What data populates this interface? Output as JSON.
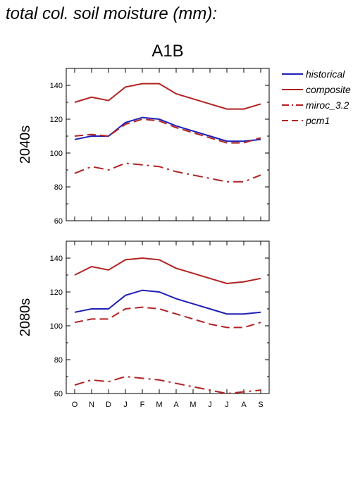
{
  "page": {
    "title": "total col. soil moisture (mm):"
  },
  "chart_data": {
    "type": "line",
    "scenario": "A1B",
    "categories": [
      "O",
      "N",
      "D",
      "J",
      "F",
      "M",
      "A",
      "M",
      "J",
      "J",
      "A",
      "S"
    ],
    "ylim": [
      60,
      150
    ],
    "yticks": [
      60,
      80,
      100,
      120,
      140
    ],
    "grid": false,
    "legend_position": "right",
    "series_styles": [
      {
        "name": "historical",
        "color": "#1f1fb4",
        "dash": "solid"
      },
      {
        "name": "composite",
        "color": "#b22222",
        "dash": "solid"
      },
      {
        "name": "miroc_3.2",
        "color": "#b22222",
        "dash": "dashdot"
      },
      {
        "name": "pcm1",
        "color": "#b22222",
        "dash": "dash"
      }
    ],
    "panels": [
      {
        "label": "2040s",
        "series": [
          {
            "name": "historical",
            "values": [
              108,
              110,
              110,
              118,
              121,
              120,
              116,
              113,
              110,
              107,
              107,
              108
            ]
          },
          {
            "name": "composite",
            "values": [
              130,
              133,
              131,
              139,
              141,
              141,
              135,
              132,
              129,
              126,
              126,
              129
            ]
          },
          {
            "name": "miroc_3.2",
            "values": [
              88,
              92,
              90,
              94,
              93,
              92,
              89,
              87,
              85,
              83,
              83,
              87
            ]
          },
          {
            "name": "pcm1",
            "values": [
              110,
              111,
              110,
              117,
              120,
              119,
              115,
              112,
              109,
              106,
              106,
              109
            ]
          }
        ]
      },
      {
        "label": "2080s",
        "series": [
          {
            "name": "historical",
            "values": [
              108,
              110,
              110,
              118,
              121,
              120,
              116,
              113,
              110,
              107,
              107,
              108
            ]
          },
          {
            "name": "composite",
            "values": [
              130,
              135,
              133,
              139,
              140,
              139,
              134,
              131,
              128,
              125,
              126,
              128
            ]
          },
          {
            "name": "miroc_3.2",
            "values": [
              65,
              68,
              67,
              70,
              69,
              68,
              66,
              64,
              62,
              60,
              61,
              62
            ]
          },
          {
            "name": "pcm1",
            "values": [
              102,
              104,
              104,
              110,
              111,
              110,
              107,
              104,
              101,
              99,
              99,
              102
            ]
          }
        ]
      }
    ]
  }
}
